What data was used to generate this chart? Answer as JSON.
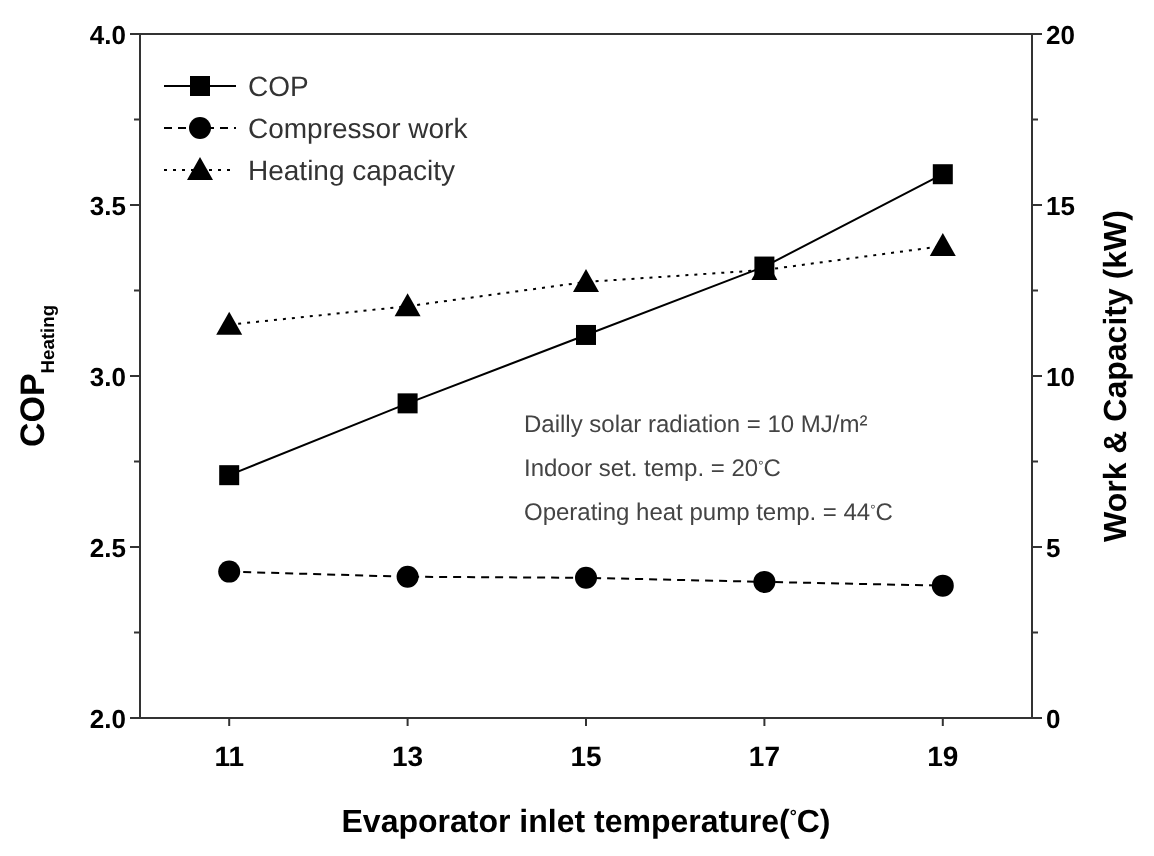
{
  "chart_data": {
    "type": "line",
    "xlabel": "Evaporator inlet temperature($^{°}$C)",
    "ylabel": "COP$_{Heating}$",
    "y2label": "Work & Capacity (kW)",
    "x": [
      11,
      13,
      15,
      17,
      19
    ],
    "xlim": [
      10,
      20
    ],
    "xticks": [
      11,
      13,
      15,
      17,
      19
    ],
    "ylim": [
      2.0,
      4.0
    ],
    "yticks": [
      {
        "value": 2.0,
        "label": "2.0"
      },
      {
        "value": 2.25,
        "label": null
      },
      {
        "value": 2.5,
        "label": "2.5"
      },
      {
        "value": 2.75,
        "label": null
      },
      {
        "value": 3.0,
        "label": "3.0"
      },
      {
        "value": 3.25,
        "label": null
      },
      {
        "value": 3.5,
        "label": "3.5"
      },
      {
        "value": 3.75,
        "label": null
      },
      {
        "value": 4.0,
        "label": "4.0"
      }
    ],
    "y2lim": [
      0,
      20
    ],
    "y2ticks": [
      0,
      {
        "value": 2.5,
        "label": null
      },
      5,
      {
        "value": 7.5,
        "label": null
      },
      10,
      {
        "value": 12.5,
        "label": null
      },
      15,
      {
        "value": 17.5,
        "label": null
      },
      20
    ],
    "series": [
      {
        "name": "COP",
        "color": "#000000",
        "values": [
          2.71,
          2.92,
          3.12,
          3.32,
          3.59
        ],
        "marker": "square",
        "line_style": "solid"
      },
      {
        "name": "Compressor work",
        "color": "#000000",
        "values": [
          4.28,
          4.13,
          4.1,
          3.98,
          3.87
        ],
        "axis": "y2",
        "marker": "circle",
        "line_style": "dashed"
      },
      {
        "name": "Heating capacity",
        "color": "#000000",
        "values": [
          11.5,
          12.04,
          12.75,
          13.1,
          13.8
        ],
        "axis": "y2",
        "marker": "triangle",
        "line_style": "dotted"
      }
    ],
    "annotations": [
      "Dailly solar radiation = 10 MJ/m²",
      "Indoor set. temp. = 20$^{°}$C",
      "Operating heat pump temp. = 44$^{°}$C"
    ],
    "legend": "top left",
    "grid": false
  }
}
